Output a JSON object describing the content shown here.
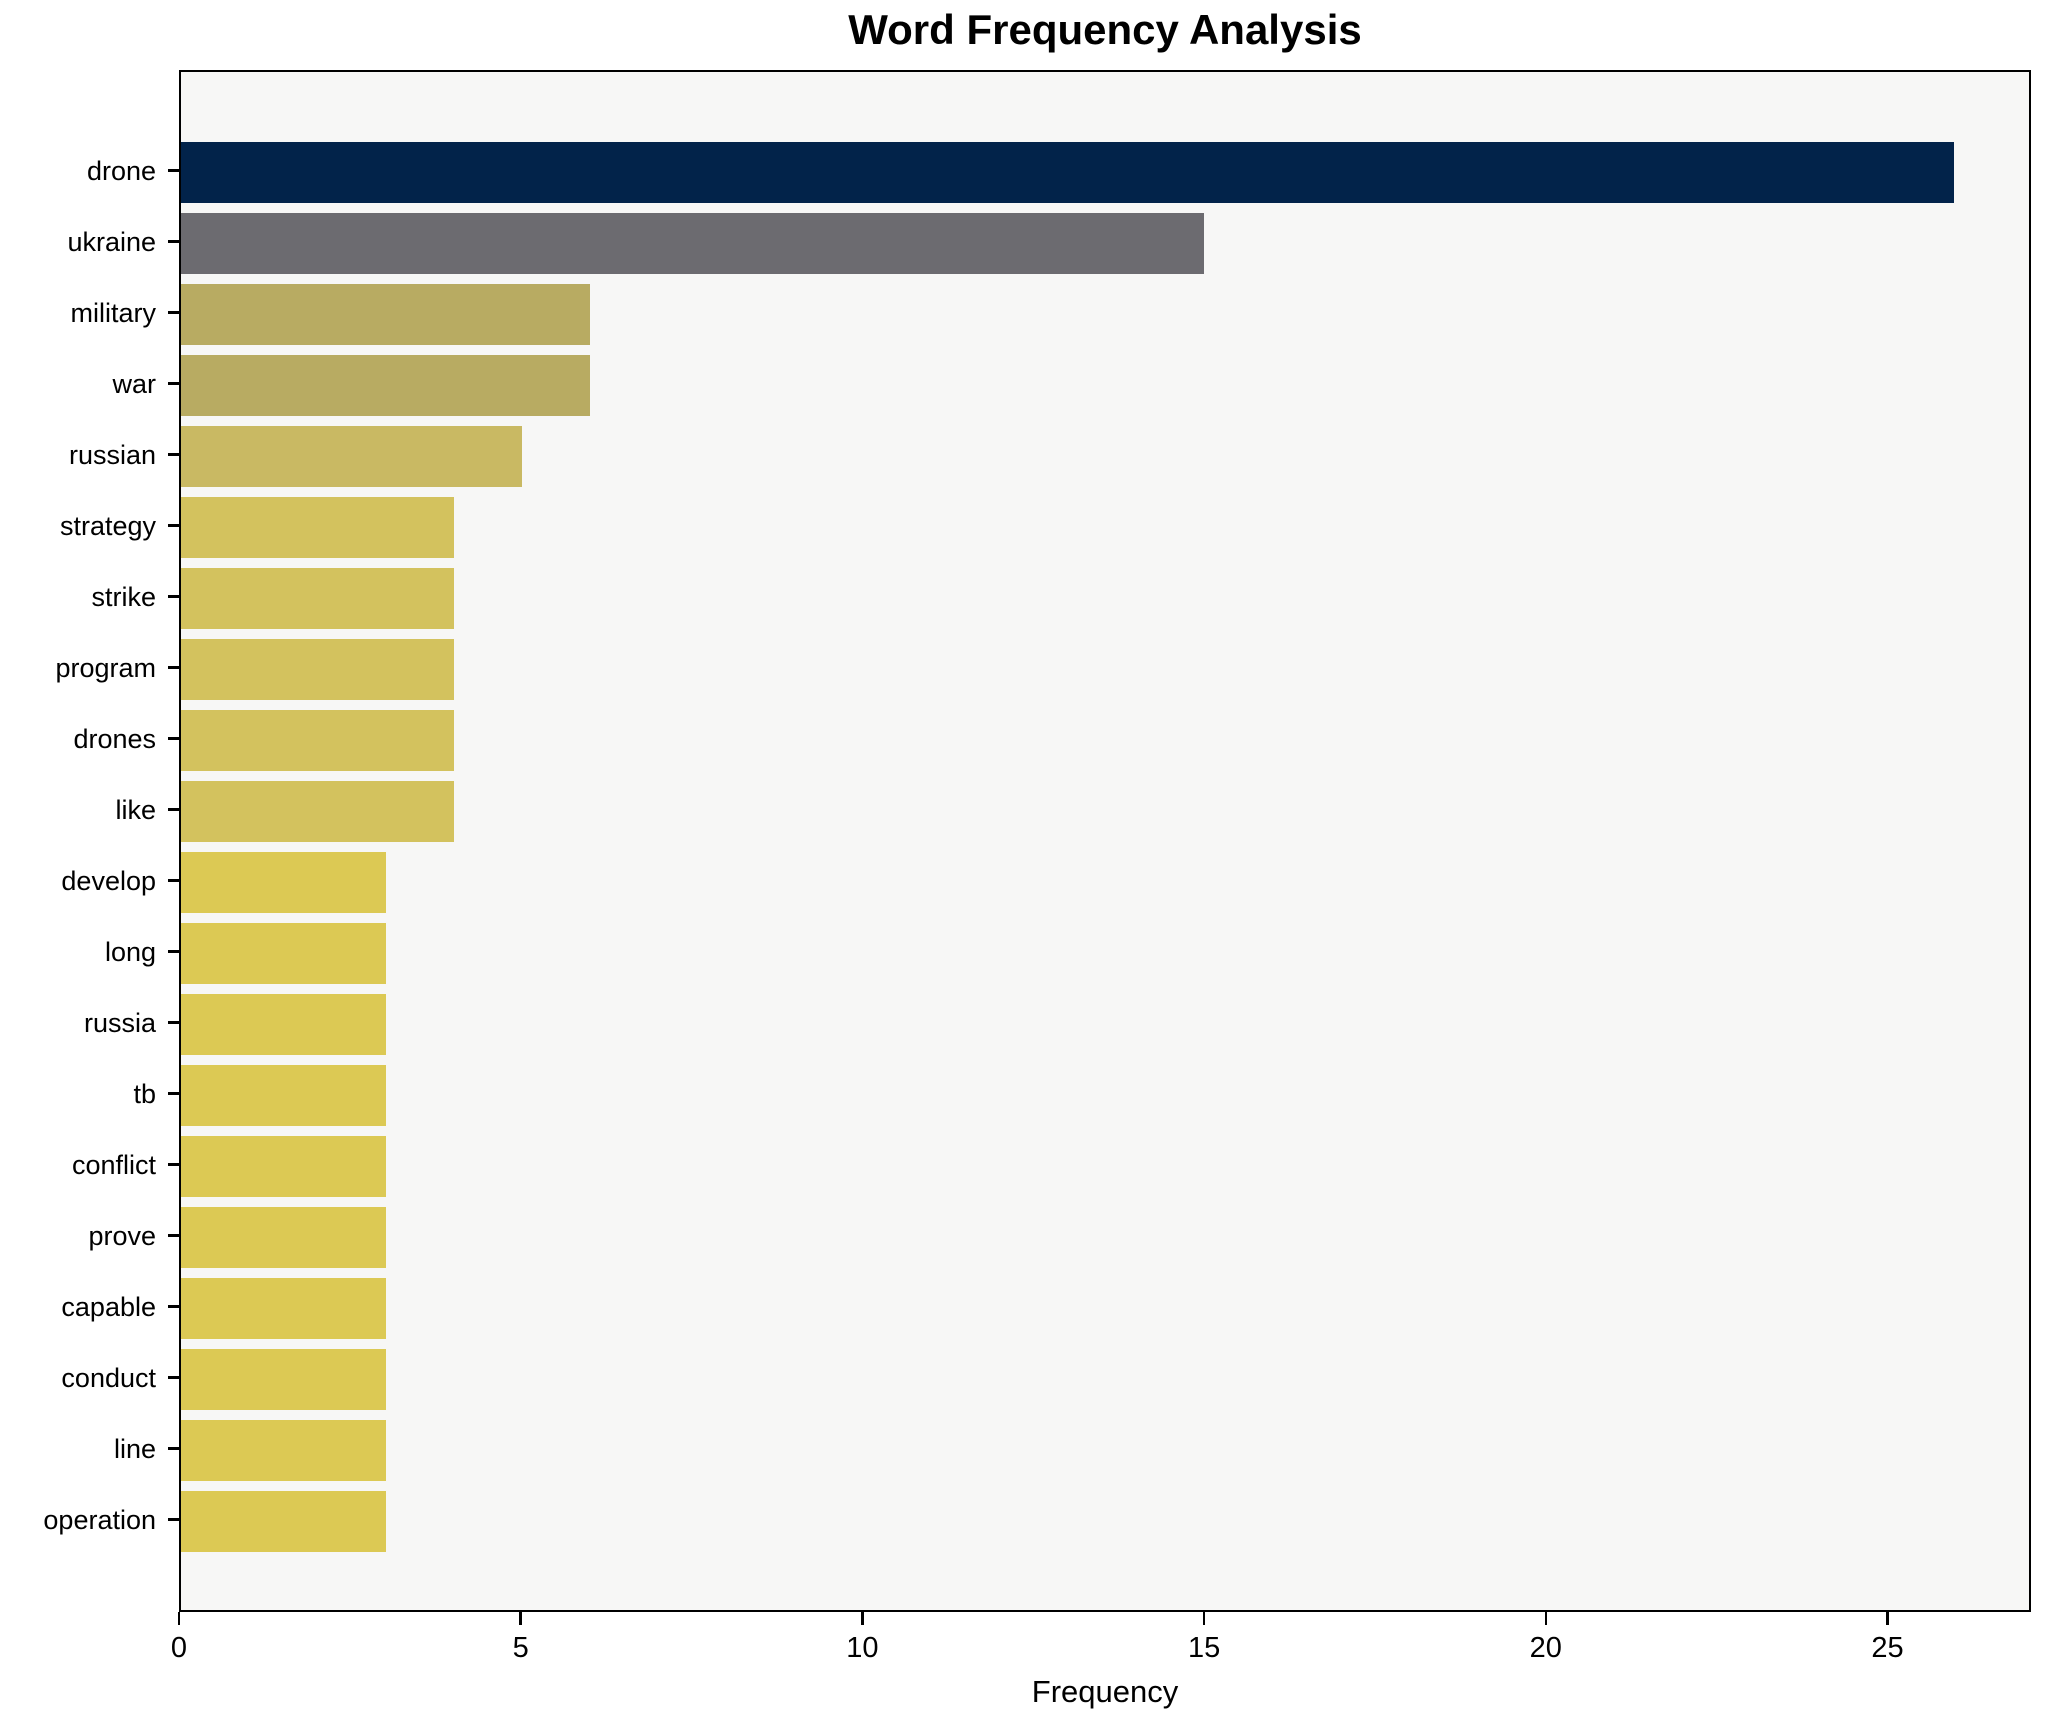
{
  "chart_data": {
    "type": "bar",
    "orientation": "horizontal",
    "title": "Word Frequency Analysis",
    "xlabel": "Frequency",
    "ylabel": "",
    "categories": [
      "drone",
      "ukraine",
      "military",
      "war",
      "russian",
      "strategy",
      "strike",
      "program",
      "drones",
      "like",
      "develop",
      "long",
      "russia",
      "tb",
      "conflict",
      "prove",
      "capable",
      "conduct",
      "line",
      "operation"
    ],
    "values": [
      26,
      15,
      6,
      6,
      5,
      4,
      4,
      4,
      4,
      4,
      3,
      3,
      3,
      3,
      3,
      3,
      3,
      3,
      3,
      3
    ],
    "bar_colors": [
      "#02234a",
      "#6c6b70",
      "#b8ab62",
      "#b8ab62",
      "#c9b963",
      "#d3c25e",
      "#d3c25e",
      "#d3c25e",
      "#d3c25e",
      "#d3c25e",
      "#dcc954",
      "#dcc954",
      "#dcc954",
      "#dcc954",
      "#dcc954",
      "#dcc954",
      "#dcc954",
      "#dcc954",
      "#dcc954",
      "#dcc954"
    ],
    "xticks": [
      0,
      5,
      10,
      15,
      20,
      25
    ],
    "xlim": [
      0,
      27.1
    ],
    "grid": false,
    "legend": null,
    "plot_background": "#f7f7f6",
    "figure_background": "#ffffff",
    "axis_color": "#000000"
  }
}
